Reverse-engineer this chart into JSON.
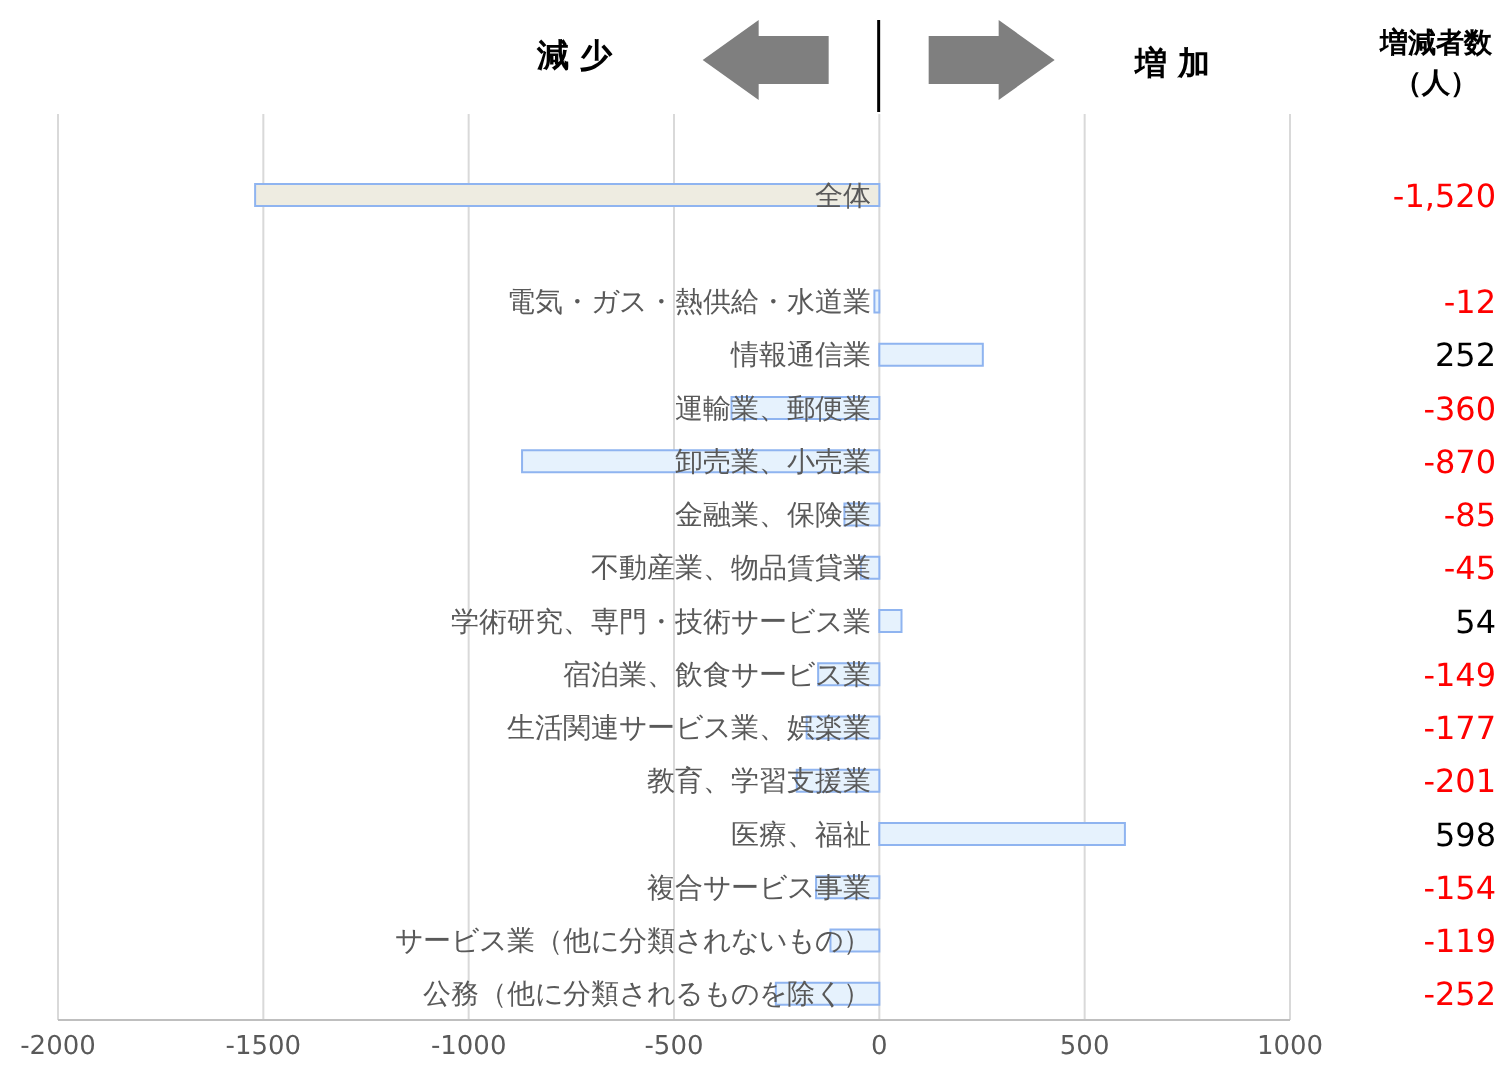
{
  "chart_data": {
    "type": "bar",
    "orientation": "horizontal",
    "categories": [
      "全体",
      null,
      "電気・ガス・熱供給・水道業",
      "情報通信業",
      "運輸業、郵便業",
      "卸売業、小売業",
      "金融業、保険業",
      "不動産業、物品賃貸業",
      "学術研究、専門・技術サービス業",
      "宿泊業、飲食サービス業",
      "生活関連サービス業、娯楽業",
      "教育、学習支援業",
      "医療、福祉",
      "複合サービス事業",
      "サービス業（他に分類されないもの）",
      "公務（他に分類されるものを除く）"
    ],
    "values": [
      -1520,
      null,
      -12,
      252,
      -360,
      -870,
      -85,
      -45,
      54,
      -149,
      -177,
      -201,
      598,
      -154,
      -119,
      -252
    ],
    "value_labels": [
      "-1,520",
      null,
      "-12",
      "252",
      "-360",
      "-870",
      "-85",
      "-45",
      "54",
      "-149",
      "-177",
      "-201",
      "598",
      "-154",
      "-119",
      "-252"
    ],
    "colors": [
      "#eeece1",
      null,
      "#e6f2fd",
      "#e6f2fd",
      "#e6f2fd",
      "#e6f2fd",
      "#e6f2fd",
      "#e6f2fd",
      "#e6f2fd",
      "#e6f2fd",
      "#e6f2fd",
      "#e6f2fd",
      "#e6f2fd",
      "#e6f2fd",
      "#e6f2fd",
      "#e6f2fd"
    ],
    "xlim": [
      -2000,
      1000
    ],
    "xticks": [
      -2000,
      -1500,
      -1000,
      -500,
      0,
      500,
      1000
    ],
    "grid": "x",
    "annotations": [
      "減 少",
      "増 加",
      "増減者数（人）"
    ]
  }
}
